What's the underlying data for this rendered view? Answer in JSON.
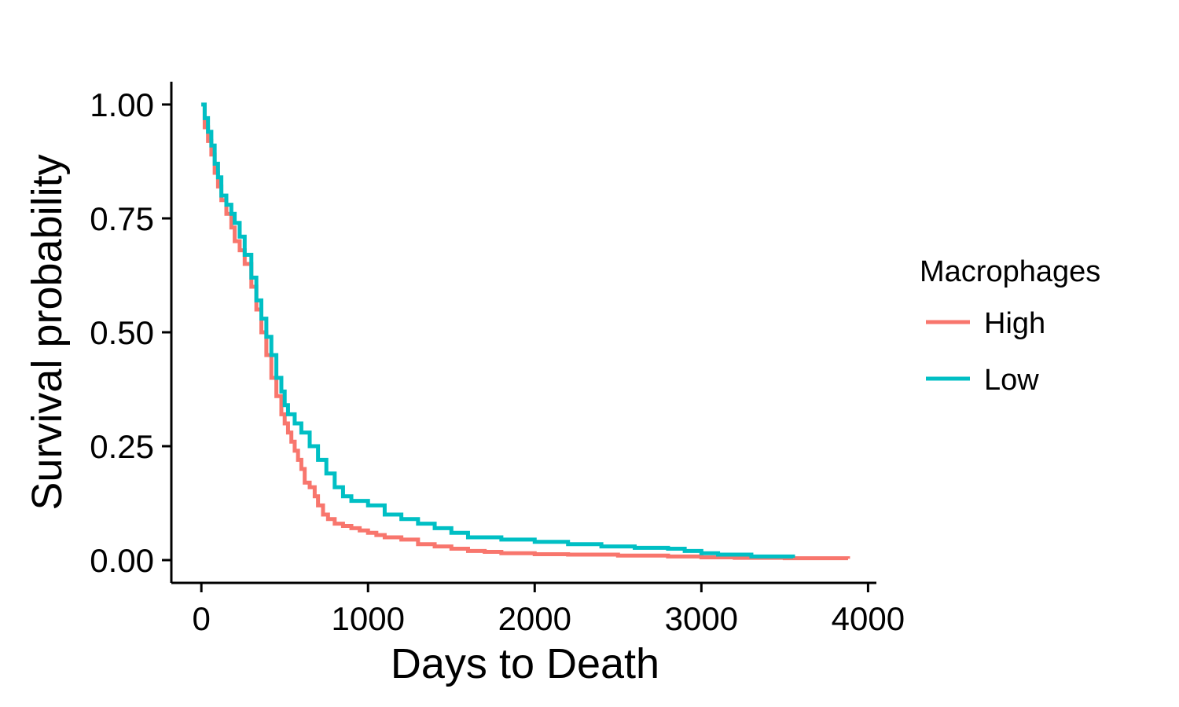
{
  "chart_data": {
    "type": "line",
    "step": true,
    "xlabel": "Days to Death",
    "ylabel": "Survival probability",
    "xlim": [
      -180,
      4050
    ],
    "ylim": [
      -0.05,
      1.05
    ],
    "x_ticks": [
      0,
      1000,
      2000,
      3000,
      4000
    ],
    "x_tick_labels": [
      "0",
      "1000",
      "2000",
      "3000",
      "4000"
    ],
    "y_ticks": [
      0,
      0.25,
      0.5,
      0.75,
      1
    ],
    "y_tick_labels": [
      "0.00",
      "0.25",
      "0.50",
      "0.75",
      "1.00"
    ],
    "grid": false,
    "legend": {
      "title": "Macrophages",
      "position": "right"
    },
    "series": [
      {
        "name": "High",
        "color": "#F8766D",
        "x": [
          0,
          20,
          40,
          60,
          80,
          100,
          120,
          150,
          180,
          200,
          230,
          260,
          300,
          330,
          360,
          390,
          420,
          450,
          480,
          500,
          520,
          540,
          560,
          580,
          600,
          620,
          650,
          680,
          700,
          730,
          760,
          800,
          850,
          900,
          950,
          1000,
          1050,
          1100,
          1200,
          1300,
          1400,
          1500,
          1600,
          1700,
          1800,
          2000,
          2200,
          2500,
          2800,
          3000,
          3200,
          3500,
          3880
        ],
        "y": [
          1.0,
          0.95,
          0.92,
          0.89,
          0.85,
          0.82,
          0.79,
          0.76,
          0.73,
          0.7,
          0.68,
          0.65,
          0.6,
          0.55,
          0.5,
          0.45,
          0.4,
          0.36,
          0.32,
          0.3,
          0.28,
          0.26,
          0.24,
          0.22,
          0.2,
          0.17,
          0.16,
          0.14,
          0.12,
          0.1,
          0.09,
          0.08,
          0.075,
          0.07,
          0.065,
          0.06,
          0.055,
          0.05,
          0.045,
          0.035,
          0.03,
          0.025,
          0.02,
          0.018,
          0.015,
          0.013,
          0.012,
          0.01,
          0.008,
          0.006,
          0.005,
          0.004,
          0.003
        ]
      },
      {
        "name": "Low",
        "color": "#00BFC4",
        "x": [
          0,
          20,
          40,
          60,
          80,
          100,
          120,
          150,
          180,
          200,
          230,
          260,
          300,
          330,
          360,
          390,
          420,
          450,
          480,
          500,
          520,
          560,
          600,
          650,
          700,
          750,
          800,
          850,
          900,
          1000,
          1100,
          1200,
          1300,
          1400,
          1500,
          1600,
          1800,
          2000,
          2200,
          2400,
          2600,
          2800,
          2900,
          3000,
          3100,
          3300,
          3550
        ],
        "y": [
          1.0,
          0.97,
          0.94,
          0.91,
          0.87,
          0.84,
          0.8,
          0.78,
          0.76,
          0.74,
          0.71,
          0.67,
          0.62,
          0.57,
          0.53,
          0.49,
          0.45,
          0.4,
          0.37,
          0.34,
          0.32,
          0.3,
          0.28,
          0.25,
          0.22,
          0.19,
          0.16,
          0.14,
          0.13,
          0.12,
          0.1,
          0.09,
          0.08,
          0.07,
          0.06,
          0.05,
          0.045,
          0.04,
          0.035,
          0.03,
          0.027,
          0.025,
          0.02,
          0.015,
          0.012,
          0.008,
          0.005
        ]
      }
    ]
  }
}
